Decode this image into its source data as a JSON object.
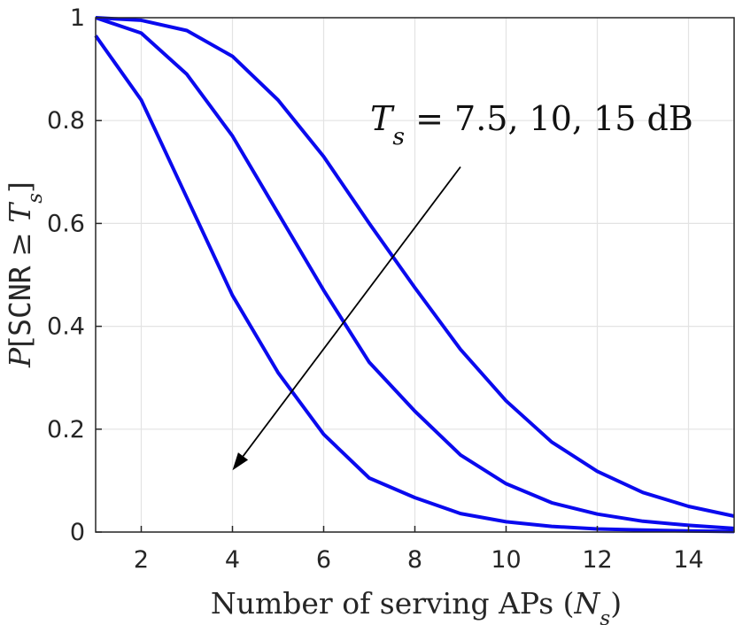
{
  "chart_data": {
    "type": "line",
    "xlabel": "Number of serving APs (N_s)",
    "ylabel": "P[SCNR ≥ T_s]",
    "annotation": "T_s = 7.5, 10, 15 dB",
    "xlim": [
      1,
      15
    ],
    "ylim": [
      0,
      1
    ],
    "x_ticks": [
      2,
      4,
      6,
      8,
      10,
      12,
      14
    ],
    "y_ticks": [
      0,
      0.2,
      0.4,
      0.6,
      0.8,
      1
    ],
    "y_tick_labels": [
      "0",
      "0.2",
      "0.4",
      "0.6",
      "0.8",
      "1"
    ],
    "grid": true,
    "line_color": "#0a0aee",
    "x": [
      1,
      2,
      3,
      4,
      5,
      6,
      7,
      8,
      9,
      10,
      11,
      12,
      13,
      14,
      15
    ],
    "series": [
      {
        "values": [
          1.0,
          0.995,
          0.975,
          0.925,
          0.84,
          0.73,
          0.6,
          0.475,
          0.355,
          0.255,
          0.175,
          0.118,
          0.077,
          0.05,
          0.031
        ]
      },
      {
        "values": [
          1.0,
          0.97,
          0.89,
          0.77,
          0.62,
          0.47,
          0.33,
          0.235,
          0.15,
          0.094,
          0.057,
          0.035,
          0.021,
          0.013,
          0.007
        ]
      },
      {
        "values": [
          0.965,
          0.84,
          0.65,
          0.46,
          0.31,
          0.19,
          0.105,
          0.067,
          0.036,
          0.02,
          0.011,
          0.006,
          0.004,
          0.002,
          0.001
        ]
      }
    ],
    "arrow": {
      "from": [
        9,
        0.71
      ],
      "to": [
        4,
        0.12
      ]
    }
  }
}
